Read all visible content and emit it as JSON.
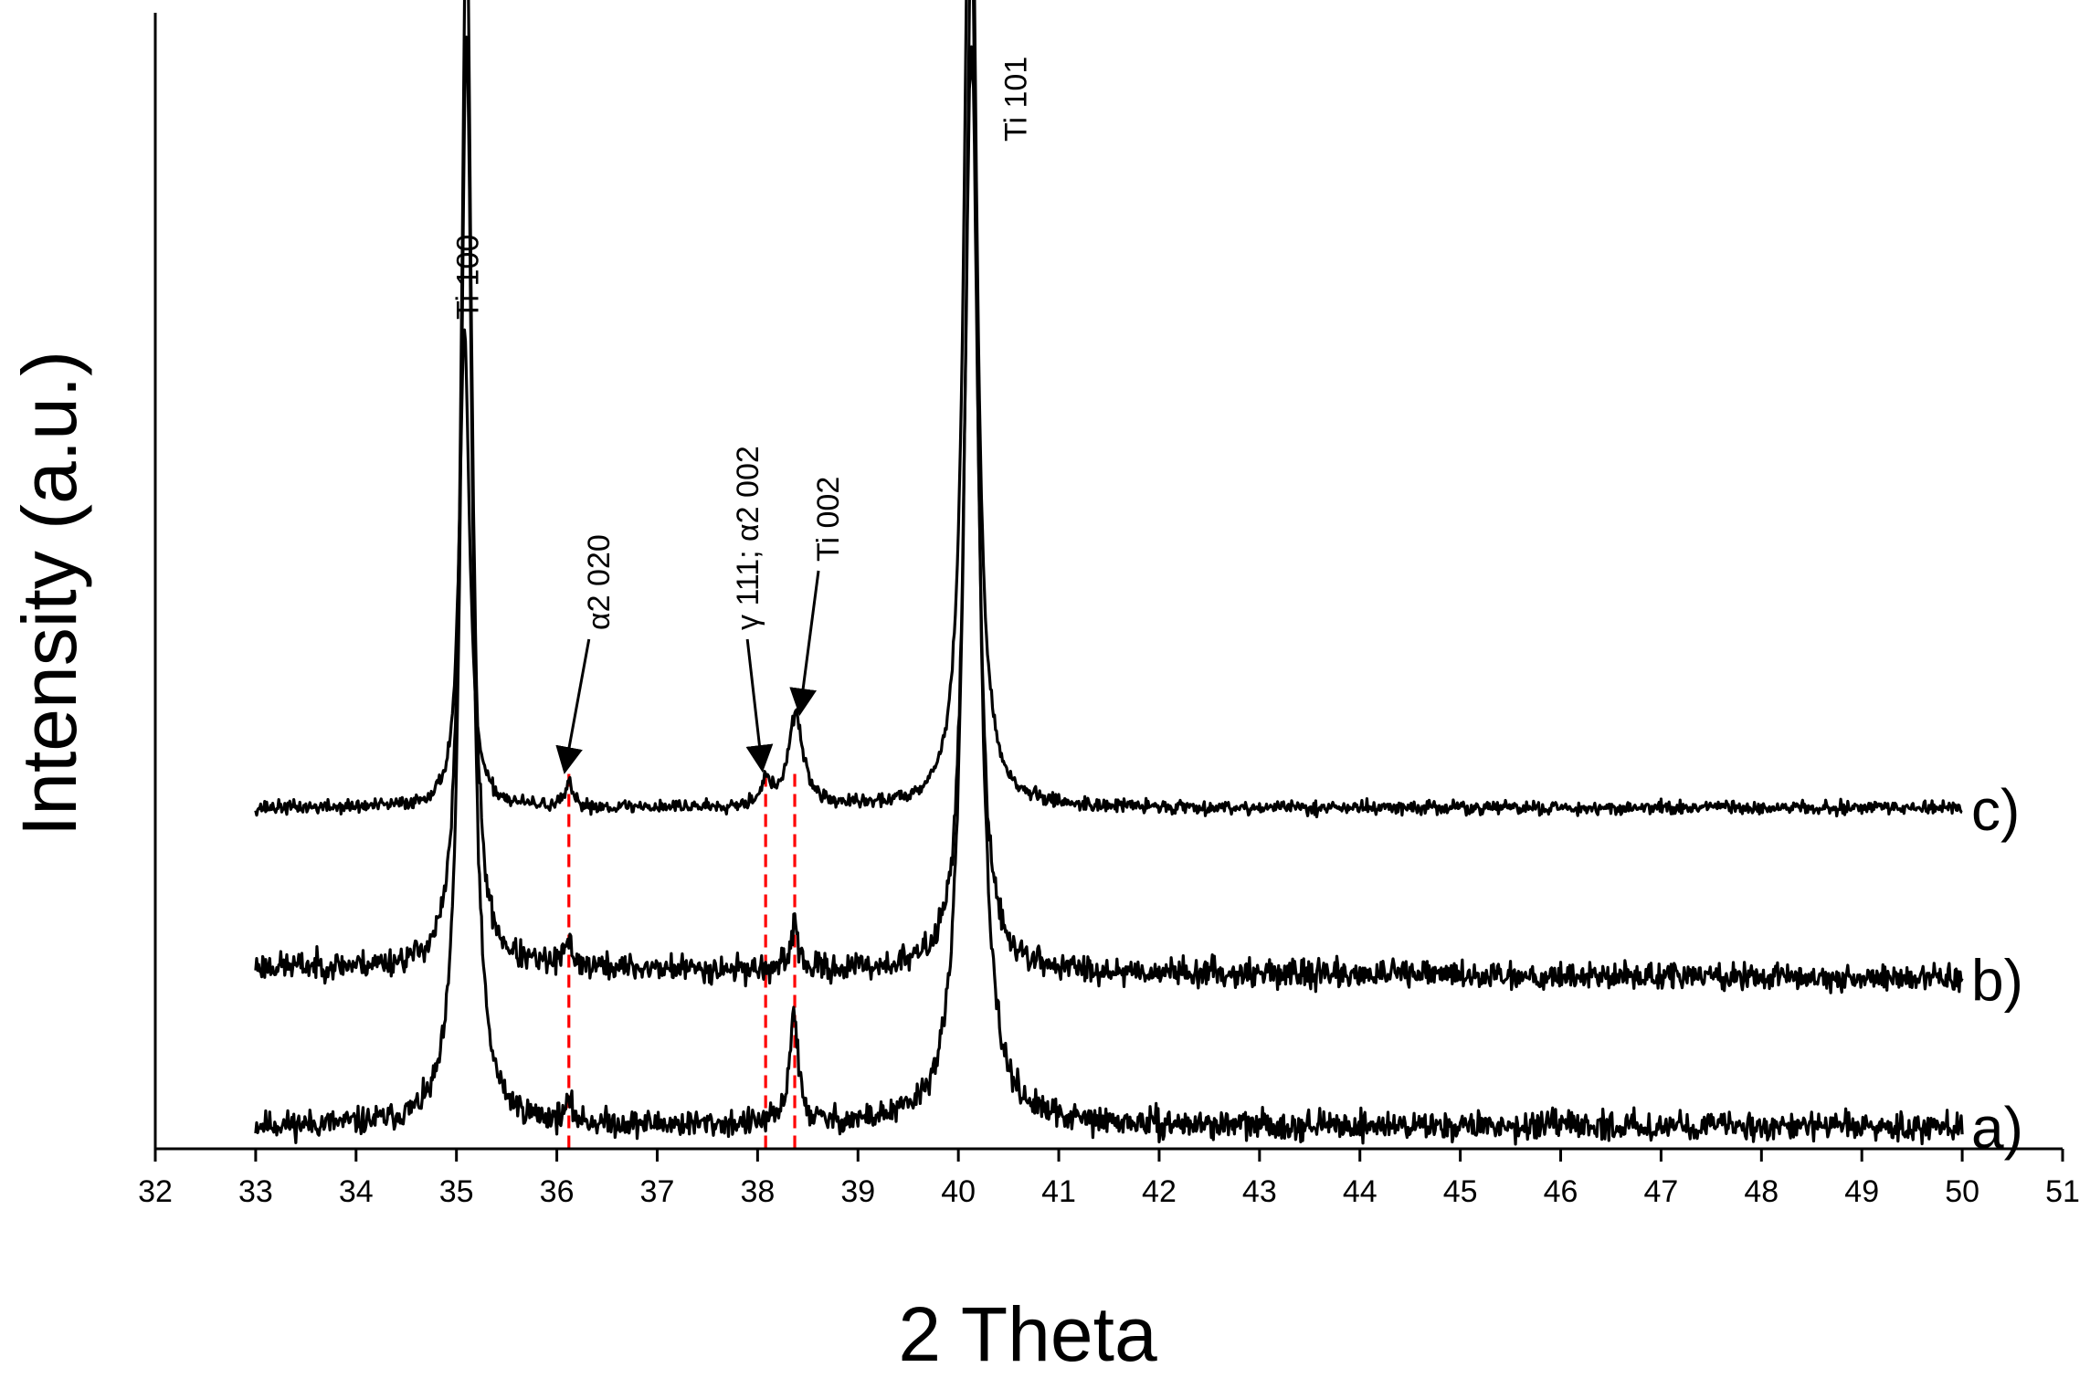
{
  "chart_data": {
    "type": "line",
    "title": "",
    "xlabel": "2 Theta",
    "ylabel": "Intensity (a.u.)",
    "xlim": [
      32,
      51
    ],
    "x_ticks": [
      "32",
      "33",
      "34",
      "35",
      "36",
      "37",
      "38",
      "39",
      "40",
      "41",
      "42",
      "43",
      "44",
      "45",
      "46",
      "47",
      "48",
      "49",
      "50",
      "51"
    ],
    "y_ticks": [],
    "grid": false,
    "legend": "none",
    "x_range_measured": [
      33,
      50
    ],
    "series": [
      {
        "name": "a)",
        "baseline": 0.02,
        "end": 0.02,
        "noise": 0.012,
        "seed": 11,
        "peaks": [
          [
            35.1,
            0.96,
            0.07
          ],
          [
            36.12,
            0.015,
            0.05
          ],
          [
            38.36,
            0.1,
            0.05
          ],
          [
            40.13,
            0.95,
            0.09
          ]
        ]
      },
      {
        "name": "b)",
        "baseline": 0.16,
        "end": 0.15,
        "noise": 0.012,
        "seed": 23,
        "peaks": [
          [
            35.1,
            0.95,
            0.06
          ],
          [
            36.12,
            0.02,
            0.05
          ],
          [
            38.37,
            0.05,
            0.03
          ],
          [
            40.13,
            0.92,
            0.07
          ]
        ]
      },
      {
        "name": "c)",
        "baseline": 0.3,
        "end": 0.3,
        "noise": 0.006,
        "seed": 37,
        "peaks": [
          [
            35.08,
            0.42,
            0.06
          ],
          [
            36.12,
            0.02,
            0.04
          ],
          [
            38.08,
            0.02,
            0.06
          ],
          [
            38.38,
            0.08,
            0.09
          ],
          [
            40.12,
            0.96,
            0.07
          ]
        ]
      }
    ],
    "reference_lines": [
      {
        "x": 36.12,
        "color": "#ff0000",
        "style": "dashed"
      },
      {
        "x": 38.08,
        "color": "#ff0000",
        "style": "dashed"
      },
      {
        "x": 38.37,
        "color": "#ff0000",
        "style": "dashed"
      }
    ],
    "annotations": [
      {
        "text": "Ti  100",
        "x": 35.1
      },
      {
        "text": "α2 020",
        "x": 36.12
      },
      {
        "text": "γ 111; α2 002",
        "x": 38.08
      },
      {
        "text": "Ti  002",
        "x": 38.37
      },
      {
        "text": "Ti  101",
        "x": 40.13
      }
    ],
    "line_color": "#000000"
  }
}
